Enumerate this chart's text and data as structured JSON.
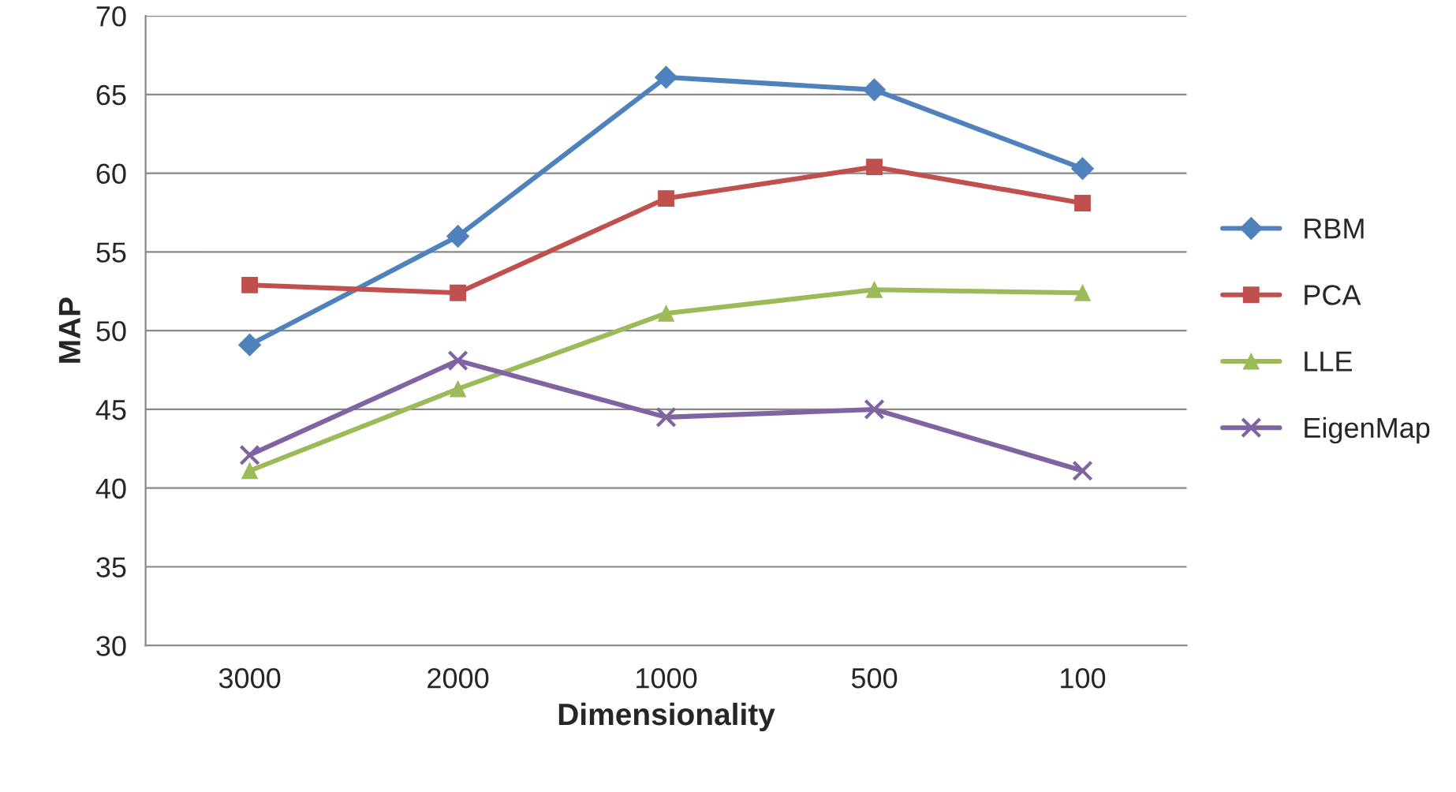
{
  "chart_data": {
    "type": "line",
    "xlabel": "Dimensionality",
    "ylabel": "MAP",
    "categories": [
      "3000",
      "2000",
      "1000",
      "500",
      "100"
    ],
    "series": [
      {
        "name": "RBM",
        "color": "#4f81bd",
        "marker": "diamond",
        "values": [
          49.1,
          56.0,
          66.1,
          65.3,
          60.3
        ]
      },
      {
        "name": "PCA",
        "color": "#c0504d",
        "marker": "square",
        "values": [
          52.9,
          52.4,
          58.4,
          60.4,
          58.1
        ]
      },
      {
        "name": "LLE",
        "color": "#9bbb59",
        "marker": "triangle",
        "values": [
          41.1,
          46.3,
          51.1,
          52.6,
          52.4
        ]
      },
      {
        "name": "EigenMap",
        "color": "#8064a2",
        "marker": "cross",
        "values": [
          42.1,
          48.1,
          44.5,
          45.0,
          41.1
        ]
      }
    ],
    "ylim": [
      30,
      70
    ],
    "yticks": [
      30,
      35,
      40,
      45,
      50,
      55,
      60,
      65,
      70
    ],
    "grid": "y",
    "legend": "right",
    "line_style": "solid"
  }
}
